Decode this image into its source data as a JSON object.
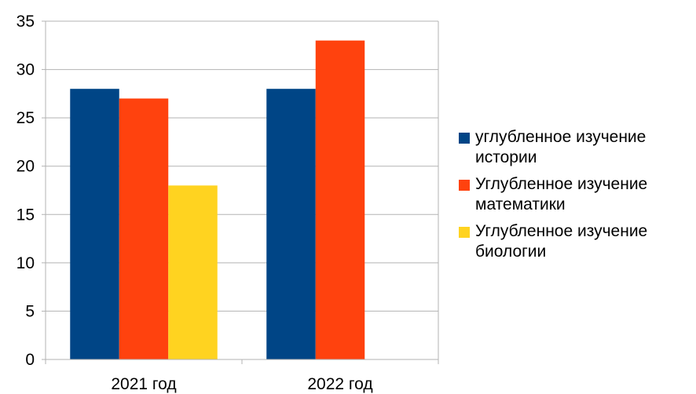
{
  "chart_data": {
    "type": "bar",
    "categories": [
      "2021 год",
      "2022 год"
    ],
    "series": [
      {
        "name": "углубленное изучение истории",
        "values": [
          28,
          28
        ],
        "color": "#004586"
      },
      {
        "name": "Углубленное изучение математики",
        "values": [
          27,
          33
        ],
        "color": "#ff420e"
      },
      {
        "name": "Углубленное изучение биологии",
        "values": [
          18,
          null
        ],
        "color": "#ffd320"
      }
    ],
    "ylim": [
      0,
      35
    ],
    "yticks": [
      0,
      5,
      10,
      15,
      20,
      25,
      30,
      35
    ],
    "grid": true,
    "legend_position": "right"
  }
}
